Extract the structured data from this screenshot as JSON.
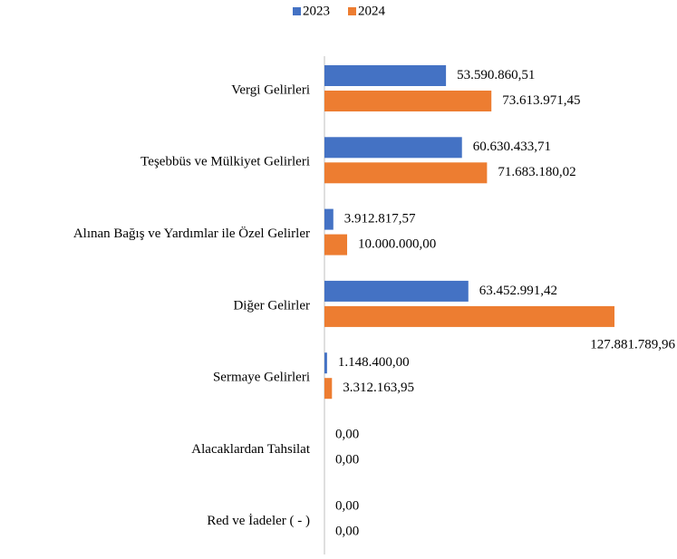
{
  "chart_data": {
    "type": "hbar",
    "categories": [
      "Vergi Gelirleri",
      "Teşebbüs ve Mülkiyet Gelirleri",
      "Alınan Bağış ve Yardımlar ile Özel Gelirler",
      "Diğer Gelirler",
      "Sermaye Gelirleri",
      "Alacaklardan Tahsilat",
      "Red ve İadeler ( - )"
    ],
    "series": [
      {
        "name": "2023",
        "color": "#4472c4",
        "values": [
          53590860.51,
          60630433.71,
          3912817.57,
          63452991.42,
          1148400.0,
          0,
          0
        ],
        "value_labels": [
          "53.590.860,51",
          "60.630.433,71",
          "3.912.817,57",
          "63.452.991,42",
          "1.148.400,00",
          "0,00",
          "0,00"
        ]
      },
      {
        "name": "2024",
        "color": "#ed7d31",
        "values": [
          73613971.45,
          71683180.02,
          10000000.0,
          127881789.96,
          3312163.95,
          0,
          0
        ],
        "value_labels": [
          "73.613.971,45",
          "71.683.180,02",
          "10.000.000,00",
          "127.881.789,96",
          "3.312.163,95",
          "0,00",
          "0,00"
        ]
      }
    ],
    "legend": "top"
  }
}
